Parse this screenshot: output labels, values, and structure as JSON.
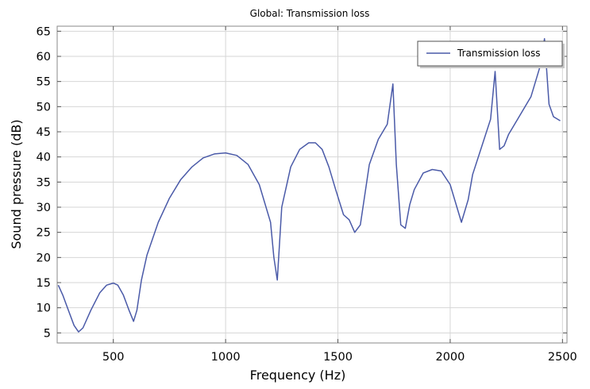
{
  "chart_data": {
    "type": "line",
    "title": "Global: Transmission loss",
    "xlabel": "Frequency (Hz)",
    "ylabel": "Sound pressure (dB)",
    "xlim": [
      250,
      2520
    ],
    "ylim": [
      3,
      66
    ],
    "xticks": [
      500,
      1000,
      1500,
      2000,
      2500
    ],
    "yticks": [
      5,
      10,
      15,
      20,
      25,
      30,
      35,
      40,
      45,
      50,
      55,
      60,
      65
    ],
    "grid": true,
    "legend_position": "top-right",
    "series": [
      {
        "name": "Transmission loss",
        "color": "#4a5aa8",
        "x": [
          255,
          275,
          300,
          325,
          345,
          365,
          400,
          440,
          470,
          500,
          520,
          545,
          570,
          590,
          605,
          625,
          650,
          700,
          750,
          800,
          850,
          900,
          950,
          1000,
          1050,
          1100,
          1150,
          1200,
          1215,
          1230,
          1250,
          1290,
          1330,
          1370,
          1400,
          1430,
          1460,
          1490,
          1525,
          1550,
          1575,
          1600,
          1640,
          1680,
          1720,
          1745,
          1760,
          1780,
          1800,
          1820,
          1840,
          1880,
          1920,
          1960,
          2000,
          2030,
          2050,
          2080,
          2100,
          2140,
          2180,
          2200,
          2220,
          2240,
          2260,
          2300,
          2360,
          2400,
          2420,
          2440,
          2460,
          2490
        ],
        "y": [
          14.5,
          12.5,
          9.5,
          6.5,
          5.2,
          6.0,
          9.5,
          13.0,
          14.5,
          14.9,
          14.5,
          12.5,
          9.5,
          7.3,
          9.5,
          15.5,
          20.5,
          27.0,
          31.8,
          35.5,
          38.0,
          39.8,
          40.6,
          40.8,
          40.3,
          38.5,
          34.5,
          27.0,
          20.0,
          15.5,
          30.0,
          38.0,
          41.5,
          42.8,
          42.8,
          41.5,
          38.0,
          33.5,
          28.5,
          27.5,
          25.0,
          26.5,
          38.5,
          43.5,
          46.5,
          54.5,
          38.5,
          26.5,
          25.8,
          30.5,
          33.5,
          36.8,
          37.5,
          37.2,
          34.5,
          30.0,
          27.0,
          31.5,
          36.5,
          42.0,
          47.5,
          57.0,
          41.5,
          42.2,
          44.5,
          47.5,
          52.0,
          58.0,
          63.5,
          50.5,
          48.0,
          47.2
        ]
      }
    ]
  }
}
